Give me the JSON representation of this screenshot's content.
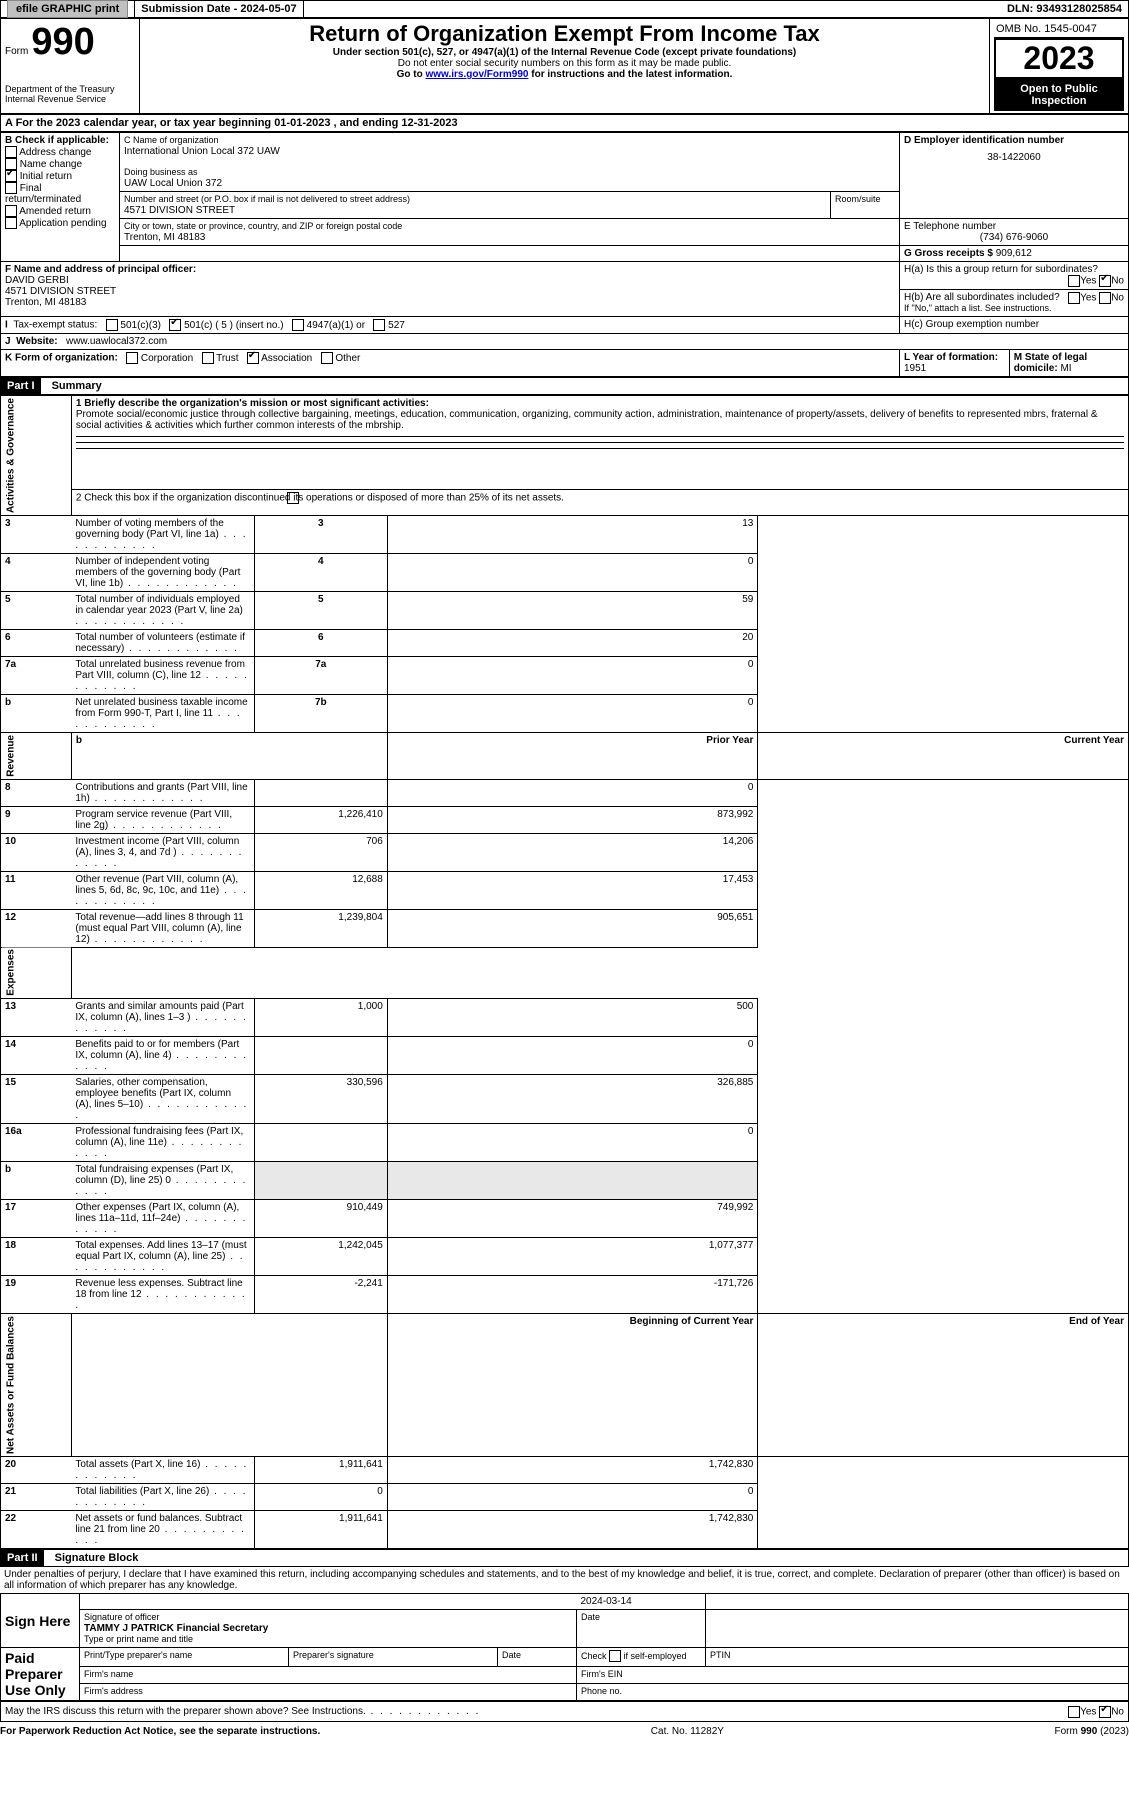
{
  "topbar": {
    "efile": "efile GRAPHIC print",
    "submission_label": "Submission Date - ",
    "submission_date": "2024-05-07",
    "dln_label": "DLN: ",
    "dln": "93493128025854"
  },
  "header": {
    "form_word": "Form",
    "form_no": "990",
    "dept": "Department of the Treasury",
    "irs": "Internal Revenue Service",
    "title": "Return of Organization Exempt From Income Tax",
    "sub1": "Under section 501(c), 527, or 4947(a)(1) of the Internal Revenue Code (except private foundations)",
    "sub2": "Do not enter social security numbers on this form as it may be made public.",
    "sub3_pre": "Go to ",
    "sub3_link": "www.irs.gov/Form990",
    "sub3_post": " for instructions and the latest information.",
    "omb": "OMB No. 1545-0047",
    "year": "2023",
    "open": "Open to Public Inspection"
  },
  "sectionA": {
    "a_line": "A For the 2023 calendar year, or tax year beginning 01-01-2023    , and ending 12-31-2023",
    "b_label": "B Check if applicable:",
    "b_items": [
      "Address change",
      "Name change",
      "Initial return",
      "Final return/terminated",
      "Amended return",
      "Application pending"
    ],
    "b_checked_index": 2,
    "c_label": "C Name of organization",
    "c_name": "International Union Local 372 UAW",
    "dba_label": "Doing business as",
    "dba": "UAW Local Union 372",
    "street_label": "Number and street (or P.O. box if mail is not delivered to street address)",
    "room_label": "Room/suite",
    "street": "4571 DIVISION STREET",
    "city_label": "City or town, state or province, country, and ZIP or foreign postal code",
    "city": "Trenton, MI  48183",
    "d_label": "D Employer identification number",
    "d_ein": "38-1422060",
    "e_label": "E Telephone number",
    "e_phone": "(734) 676-9060",
    "g_label": "G Gross receipts $ ",
    "g_amount": "909,612",
    "f_label": "F Name and address of principal officer:",
    "f_name": "DAVID GERBI",
    "f_street": "4571 DIVISION STREET",
    "f_city": "Trenton, MI  48183",
    "ha_label": "H(a)  Is this a group return for subordinates?",
    "hb_label": "H(b)  Are all subordinates included?",
    "h_attach": "If \"No,\" attach a list. See instructions.",
    "hc_label": "H(c)  Group exemption number  ",
    "yes": "Yes",
    "no": "No",
    "i_label": "Tax-exempt status:",
    "i_opts": [
      "501(c)(3)",
      "501(c) ( 5 ) (insert no.)",
      "4947(a)(1) or",
      "527"
    ],
    "i_checked_index": 1,
    "j_label": "Website: ",
    "j_url": "www.uawlocal372.com",
    "k_label": "K Form of organization:",
    "k_opts": [
      "Corporation",
      "Trust",
      "Association",
      "Other"
    ],
    "k_checked_index": 2,
    "l_label": "L Year of formation: ",
    "l_year": "1951",
    "m_label": "M State of legal domicile: ",
    "m_state": "MI"
  },
  "part1": {
    "bar": "Part I",
    "title": "Summary",
    "line1_label": "1   Briefly describe the organization's mission or most significant activities:",
    "line1_text": "Promote social/economic justice through collective bargaining, meetings, education, communication, organizing, community action, administration, maintenance of property/assets, delivery of benefits to represented mbrs, fraternal & social activities & activities which further common interests of the mbrship.",
    "line2": "2   Check this box        if the organization discontinued its operations or disposed of more than 25% of its net assets.",
    "rows_gov": [
      {
        "n": "3",
        "label": "Number of voting members of the governing body (Part VI, line 1a)",
        "box": "3",
        "val": "13"
      },
      {
        "n": "4",
        "label": "Number of independent voting members of the governing body (Part VI, line 1b)",
        "box": "4",
        "val": "0"
      },
      {
        "n": "5",
        "label": "Total number of individuals employed in calendar year 2023 (Part V, line 2a)",
        "box": "5",
        "val": "59"
      },
      {
        "n": "6",
        "label": "Total number of volunteers (estimate if necessary)",
        "box": "6",
        "val": "20"
      },
      {
        "n": "7a",
        "label": "Total unrelated business revenue from Part VIII, column (C), line 12",
        "box": "7a",
        "val": "0"
      },
      {
        "n": "b",
        "label": "Net unrelated business taxable income from Form 990-T, Part I, line 11",
        "box": "7b",
        "val": "0"
      }
    ],
    "col_prior": "Prior Year",
    "col_current": "Current Year",
    "rows_rev": [
      {
        "n": "8",
        "label": "Contributions and grants (Part VIII, line 1h)",
        "p": "",
        "c": "0"
      },
      {
        "n": "9",
        "label": "Program service revenue (Part VIII, line 2g)",
        "p": "1,226,410",
        "c": "873,992"
      },
      {
        "n": "10",
        "label": "Investment income (Part VIII, column (A), lines 3, 4, and 7d )",
        "p": "706",
        "c": "14,206"
      },
      {
        "n": "11",
        "label": "Other revenue (Part VIII, column (A), lines 5, 6d, 8c, 9c, 10c, and 11e)",
        "p": "12,688",
        "c": "17,453"
      },
      {
        "n": "12",
        "label": "Total revenue—add lines 8 through 11 (must equal Part VIII, column (A), line 12)",
        "p": "1,239,804",
        "c": "905,651"
      }
    ],
    "rows_exp": [
      {
        "n": "13",
        "label": "Grants and similar amounts paid (Part IX, column (A), lines 1–3 )",
        "p": "1,000",
        "c": "500"
      },
      {
        "n": "14",
        "label": "Benefits paid to or for members (Part IX, column (A), line 4)",
        "p": "",
        "c": "0"
      },
      {
        "n": "15",
        "label": "Salaries, other compensation, employee benefits (Part IX, column (A), lines 5–10)",
        "p": "330,596",
        "c": "326,885"
      },
      {
        "n": "16a",
        "label": "Professional fundraising fees (Part IX, column (A), line 11e)",
        "p": "",
        "c": "0"
      },
      {
        "n": "b",
        "label": "Total fundraising expenses (Part IX, column (D), line 25) 0",
        "p": "grey",
        "c": "grey"
      },
      {
        "n": "17",
        "label": "Other expenses (Part IX, column (A), lines 11a–11d, 11f–24e)",
        "p": "910,449",
        "c": "749,992"
      },
      {
        "n": "18",
        "label": "Total expenses. Add lines 13–17 (must equal Part IX, column (A), line 25)",
        "p": "1,242,045",
        "c": "1,077,377"
      },
      {
        "n": "19",
        "label": "Revenue less expenses. Subtract line 18 from line 12",
        "p": "-2,241",
        "c": "-171,726"
      }
    ],
    "col_boy": "Beginning of Current Year",
    "col_eoy": "End of Year",
    "rows_net": [
      {
        "n": "20",
        "label": "Total assets (Part X, line 16)",
        "p": "1,911,641",
        "c": "1,742,830"
      },
      {
        "n": "21",
        "label": "Total liabilities (Part X, line 26)",
        "p": "0",
        "c": "0"
      },
      {
        "n": "22",
        "label": "Net assets or fund balances. Subtract line 21 from line 20",
        "p": "1,911,641",
        "c": "1,742,830"
      }
    ],
    "vlabels": {
      "gov": "Activities & Governance",
      "rev": "Revenue",
      "exp": "Expenses",
      "net": "Net Assets or Fund Balances"
    }
  },
  "part2": {
    "bar": "Part II",
    "title": "Signature Block",
    "perjury": "Under penalties of perjury, I declare that I have examined this return, including accompanying schedules and statements, and to the best of my knowledge and belief, it is true, correct, and complete. Declaration of preparer (other than officer) is based on all information of which preparer has any knowledge.",
    "sign_here": "Sign Here",
    "sig_officer": "Signature of officer",
    "sig_name": "TAMMY J PATRICK  Financial Secretary",
    "sig_type": "Type or print name and title",
    "date_label": "Date",
    "date": "2024-03-14",
    "paid": "Paid Preparer Use Only",
    "col_print": "Print/Type preparer's name",
    "col_sig": "Preparer's signature",
    "col_date": "Date",
    "col_check": "Check        if self-employed",
    "col_ptin": "PTIN",
    "firm_name": "Firm's name   ",
    "firm_ein": "Firm's EIN  ",
    "firm_addr": "Firm's address  ",
    "phone": "Phone no.",
    "discuss": "May the IRS discuss this return with the preparer shown above? See Instructions.",
    "footer_left": "For Paperwork Reduction Act Notice, see the separate instructions.",
    "footer_mid": "Cat. No. 11282Y",
    "footer_right": "Form 990 (2023)"
  }
}
